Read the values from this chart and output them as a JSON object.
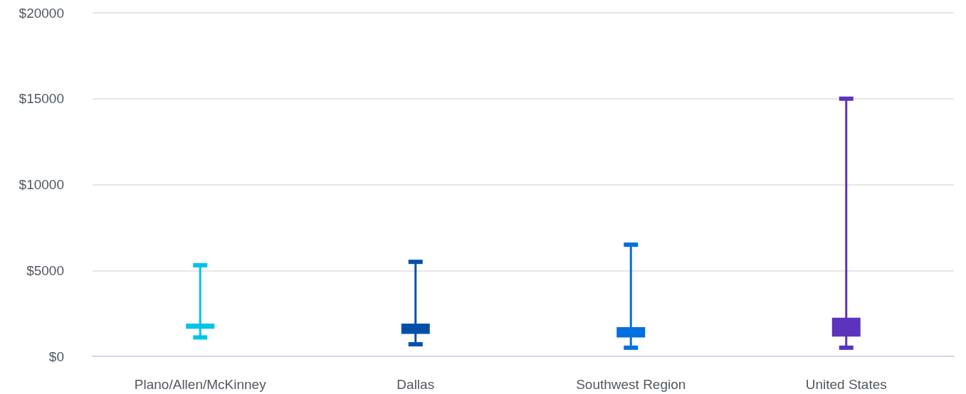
{
  "chart_data": {
    "type": "bar",
    "categories": [
      "Plano/Allen/McKinney",
      "Dallas",
      "Southwest Region",
      "United States"
    ],
    "base": [
      1600,
      1300,
      1100,
      1150
    ],
    "values": [
      300,
      600,
      600,
      1100
    ],
    "errors": [
      [
        1100,
        5300
      ],
      [
        700,
        5500
      ],
      [
        500,
        6500
      ],
      [
        500,
        15000
      ]
    ],
    "colors": [
      "#00c4e6",
      "#0050a8",
      "#006fe0",
      "#5b33bd"
    ],
    "ylim": [
      0,
      20000
    ],
    "yticks": [
      {
        "value": 0,
        "label": "$0"
      },
      {
        "value": 5000,
        "label": "$5000"
      },
      {
        "value": 10000,
        "label": "$10000"
      },
      {
        "value": 15000,
        "label": "$15000"
      },
      {
        "value": 20000,
        "label": "$20000"
      }
    ],
    "grid": "y"
  }
}
